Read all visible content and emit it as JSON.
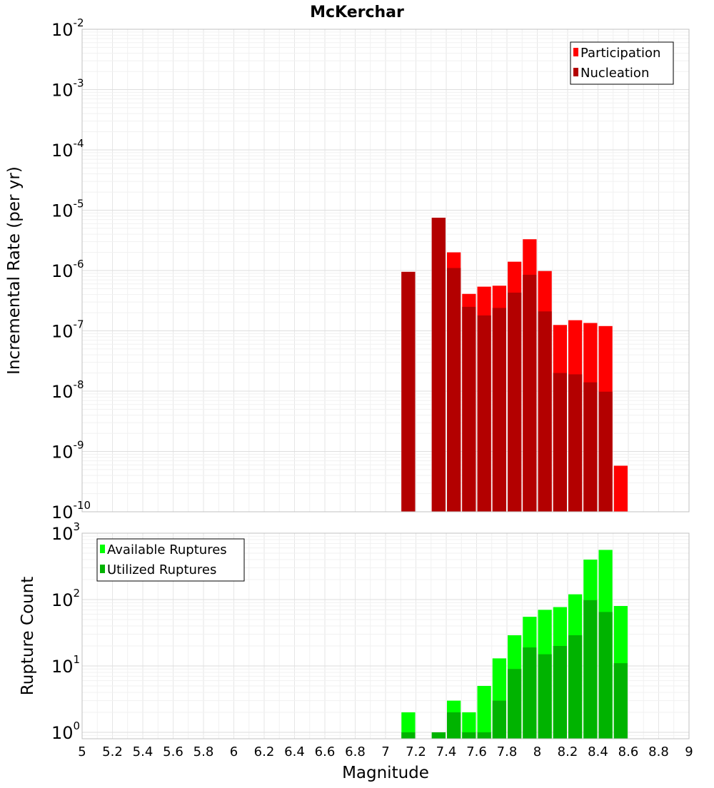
{
  "chart_data": [
    {
      "type": "bar",
      "title": "McKerchar",
      "xlabel": "",
      "ylabel": "Incremental Rate (per yr)",
      "y_scale": "log",
      "ylim": [
        1e-10,
        0.01
      ],
      "xlim": [
        5,
        9
      ],
      "bar_width": 0.1,
      "grid": true,
      "legend_position": "top-right",
      "x": [
        7.15,
        7.35,
        7.45,
        7.55,
        7.65,
        7.75,
        7.85,
        7.95,
        8.05,
        8.15,
        8.25,
        8.35,
        8.45,
        8.55
      ],
      "series": [
        {
          "name": "Participation",
          "color": "#ff0000",
          "values": [
            9.5e-07,
            7.5e-06,
            2e-06,
            4.1e-07,
            5.4e-07,
            5.6e-07,
            1.4e-06,
            3.3e-06,
            9.8e-07,
            1.25e-07,
            1.5e-07,
            1.35e-07,
            1.2e-07,
            5.8e-10
          ]
        },
        {
          "name": "Nucleation",
          "color": "#b30000",
          "values": [
            9.5e-07,
            7.5e-06,
            1.1e-06,
            2.5e-07,
            1.8e-07,
            2.4e-07,
            4.3e-07,
            8.5e-07,
            2.1e-07,
            2e-08,
            1.9e-08,
            1.4e-08,
            9.8e-09,
            null
          ]
        }
      ],
      "y_ticks": [
        {
          "base": "10",
          "exp": "-10"
        },
        {
          "base": "10",
          "exp": "-9"
        },
        {
          "base": "10",
          "exp": "-8"
        },
        {
          "base": "10",
          "exp": "-7"
        },
        {
          "base": "10",
          "exp": "-6"
        },
        {
          "base": "10",
          "exp": "-5"
        },
        {
          "base": "10",
          "exp": "-4"
        },
        {
          "base": "10",
          "exp": "-3"
        },
        {
          "base": "10",
          "exp": "-2"
        }
      ]
    },
    {
      "type": "bar",
      "title": "",
      "xlabel": "Magnitude",
      "ylabel": "Rupture Count",
      "y_scale": "log",
      "ylim": [
        0.8,
        1000
      ],
      "xlim": [
        5,
        9
      ],
      "bar_width": 0.1,
      "grid": true,
      "legend_position": "top-left",
      "x": [
        7.15,
        7.35,
        7.45,
        7.55,
        7.65,
        7.75,
        7.85,
        7.95,
        8.05,
        8.15,
        8.25,
        8.35,
        8.45,
        8.55
      ],
      "series": [
        {
          "name": "Available Ruptures",
          "color": "#00ff00",
          "values": [
            2,
            1,
            3,
            2,
            5,
            13,
            29,
            55,
            70,
            77,
            120,
            400,
            560,
            80
          ]
        },
        {
          "name": "Utilized Ruptures",
          "color": "#00b300",
          "values": [
            1,
            1,
            2,
            1,
            1,
            3,
            9,
            19,
            15,
            20,
            29,
            98,
            65,
            11
          ]
        }
      ],
      "y_ticks": [
        {
          "base": "10",
          "exp": "0"
        },
        {
          "base": "10",
          "exp": "1"
        },
        {
          "base": "10",
          "exp": "2"
        },
        {
          "base": "10",
          "exp": "3"
        }
      ],
      "x_ticks": [
        "5",
        "5.2",
        "5.4",
        "5.6",
        "5.8",
        "6",
        "6.2",
        "6.4",
        "6.6",
        "6.8",
        "7",
        "7.2",
        "7.4",
        "7.6",
        "7.8",
        "8",
        "8.2",
        "8.4",
        "8.6",
        "8.8",
        "9"
      ]
    }
  ]
}
